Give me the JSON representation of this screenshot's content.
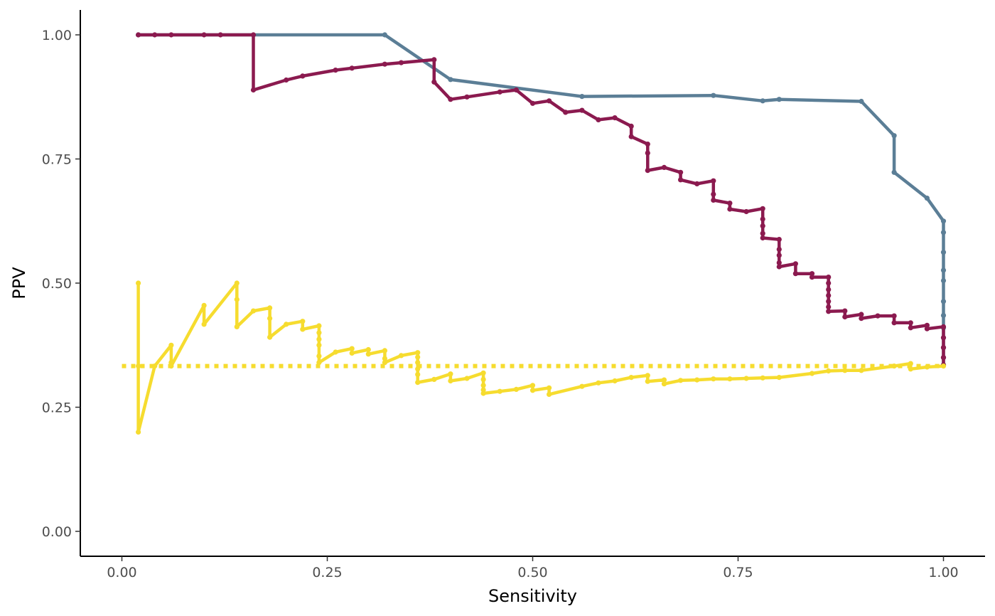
{
  "chart_data": {
    "type": "line",
    "title": "",
    "xlabel": "Sensitivity",
    "ylabel": "PPV",
    "xlim": [
      0,
      1
    ],
    "ylim": [
      0,
      1
    ],
    "x_ticks": [
      0,
      0.25,
      0.5,
      0.75,
      1
    ],
    "y_ticks": [
      0,
      0.25,
      0.5,
      0.75,
      1
    ],
    "x_tick_labels": [
      "0.00",
      "0.25",
      "0.50",
      "0.75",
      "1.00"
    ],
    "y_tick_labels": [
      "0.00",
      "0.25",
      "0.50",
      "0.75",
      "1.00"
    ],
    "grid": false,
    "legend": "none",
    "baseline": {
      "y": 0.333,
      "x_range": [
        0,
        1
      ],
      "style": "dotted",
      "color": "#f6dc2f"
    },
    "series": [
      {
        "color": "#5b7e96",
        "points": [
          [
            0.02,
            1.0
          ],
          [
            0.32,
            1.0
          ],
          [
            0.4,
            0.91
          ],
          [
            0.56,
            0.876
          ],
          [
            0.72,
            0.878
          ],
          [
            0.78,
            0.867
          ],
          [
            0.8,
            0.87
          ],
          [
            0.9,
            0.866
          ],
          [
            0.94,
            0.797
          ],
          [
            0.94,
            0.723
          ],
          [
            0.98,
            0.671
          ],
          [
            1.0,
            0.625
          ],
          [
            1.0,
            0.602
          ],
          [
            1.0,
            0.562
          ],
          [
            1.0,
            0.526
          ],
          [
            1.0,
            0.505
          ],
          [
            1.0,
            0.463
          ],
          [
            1.0,
            0.435
          ],
          [
            1.0,
            0.41
          ],
          [
            1.0,
            0.39
          ],
          [
            1.0,
            0.37
          ],
          [
            1.0,
            0.35
          ],
          [
            1.0,
            0.335
          ]
        ]
      },
      {
        "color": "#8b1a4f",
        "points": [
          [
            0.02,
            1.0
          ],
          [
            0.04,
            1.0
          ],
          [
            0.06,
            1.0
          ],
          [
            0.1,
            1.0
          ],
          [
            0.12,
            1.0
          ],
          [
            0.16,
            1.0
          ],
          [
            0.16,
            0.889
          ],
          [
            0.2,
            0.909
          ],
          [
            0.22,
            0.917
          ],
          [
            0.26,
            0.929
          ],
          [
            0.28,
            0.933
          ],
          [
            0.32,
            0.941
          ],
          [
            0.34,
            0.944
          ],
          [
            0.38,
            0.95
          ],
          [
            0.38,
            0.905
          ],
          [
            0.4,
            0.87
          ],
          [
            0.42,
            0.875
          ],
          [
            0.46,
            0.885
          ],
          [
            0.48,
            0.889
          ],
          [
            0.5,
            0.862
          ],
          [
            0.52,
            0.867
          ],
          [
            0.54,
            0.844
          ],
          [
            0.56,
            0.848
          ],
          [
            0.58,
            0.829
          ],
          [
            0.6,
            0.833
          ],
          [
            0.62,
            0.816
          ],
          [
            0.62,
            0.795
          ],
          [
            0.64,
            0.78
          ],
          [
            0.64,
            0.762
          ],
          [
            0.64,
            0.727
          ],
          [
            0.66,
            0.733
          ],
          [
            0.68,
            0.723
          ],
          [
            0.68,
            0.708
          ],
          [
            0.7,
            0.7
          ],
          [
            0.72,
            0.706
          ],
          [
            0.72,
            0.679
          ],
          [
            0.72,
            0.667
          ],
          [
            0.74,
            0.661
          ],
          [
            0.74,
            0.649
          ],
          [
            0.76,
            0.644
          ],
          [
            0.78,
            0.65
          ],
          [
            0.78,
            0.629
          ],
          [
            0.78,
            0.615
          ],
          [
            0.78,
            0.6
          ],
          [
            0.78,
            0.591
          ],
          [
            0.8,
            0.588
          ],
          [
            0.8,
            0.568
          ],
          [
            0.8,
            0.556
          ],
          [
            0.8,
            0.541
          ],
          [
            0.8,
            0.533
          ],
          [
            0.82,
            0.539
          ],
          [
            0.82,
            0.519
          ],
          [
            0.84,
            0.519
          ],
          [
            0.84,
            0.512
          ],
          [
            0.86,
            0.512
          ],
          [
            0.86,
            0.5
          ],
          [
            0.86,
            0.487
          ],
          [
            0.86,
            0.475
          ],
          [
            0.86,
            0.463
          ],
          [
            0.86,
            0.452
          ],
          [
            0.86,
            0.443
          ],
          [
            0.88,
            0.444
          ],
          [
            0.88,
            0.432
          ],
          [
            0.9,
            0.437
          ],
          [
            0.9,
            0.429
          ],
          [
            0.92,
            0.434
          ],
          [
            0.94,
            0.434
          ],
          [
            0.94,
            0.42
          ],
          [
            0.96,
            0.42
          ],
          [
            0.96,
            0.41
          ],
          [
            0.98,
            0.415
          ],
          [
            0.98,
            0.408
          ],
          [
            1.0,
            0.412
          ],
          [
            1.0,
            0.39
          ],
          [
            1.0,
            0.37
          ],
          [
            1.0,
            0.35
          ],
          [
            1.0,
            0.335
          ]
        ]
      },
      {
        "color": "#f6dc2f",
        "points": [
          [
            0.02,
            0.5
          ],
          [
            0.02,
            0.333
          ],
          [
            0.02,
            0.2
          ],
          [
            0.04,
            0.333
          ],
          [
            0.06,
            0.375
          ],
          [
            0.06,
            0.34
          ],
          [
            0.06,
            0.333
          ],
          [
            0.1,
            0.455
          ],
          [
            0.1,
            0.417
          ],
          [
            0.14,
            0.5
          ],
          [
            0.14,
            0.467
          ],
          [
            0.14,
            0.412
          ],
          [
            0.16,
            0.444
          ],
          [
            0.18,
            0.45
          ],
          [
            0.18,
            0.429
          ],
          [
            0.18,
            0.391
          ],
          [
            0.2,
            0.417
          ],
          [
            0.22,
            0.423
          ],
          [
            0.22,
            0.407
          ],
          [
            0.24,
            0.414
          ],
          [
            0.24,
            0.4
          ],
          [
            0.24,
            0.387
          ],
          [
            0.24,
            0.375
          ],
          [
            0.24,
            0.353
          ],
          [
            0.24,
            0.34
          ],
          [
            0.26,
            0.361
          ],
          [
            0.28,
            0.368
          ],
          [
            0.28,
            0.359
          ],
          [
            0.3,
            0.366
          ],
          [
            0.3,
            0.357
          ],
          [
            0.32,
            0.364
          ],
          [
            0.32,
            0.348
          ],
          [
            0.32,
            0.34
          ],
          [
            0.34,
            0.354
          ],
          [
            0.36,
            0.36
          ],
          [
            0.36,
            0.351
          ],
          [
            0.36,
            0.34
          ],
          [
            0.36,
            0.327
          ],
          [
            0.36,
            0.316
          ],
          [
            0.36,
            0.3
          ],
          [
            0.38,
            0.306
          ],
          [
            0.4,
            0.317
          ],
          [
            0.4,
            0.303
          ],
          [
            0.42,
            0.308
          ],
          [
            0.44,
            0.319
          ],
          [
            0.44,
            0.306
          ],
          [
            0.44,
            0.294
          ],
          [
            0.44,
            0.285
          ],
          [
            0.44,
            0.278
          ],
          [
            0.46,
            0.282
          ],
          [
            0.48,
            0.286
          ],
          [
            0.5,
            0.294
          ],
          [
            0.5,
            0.284
          ],
          [
            0.52,
            0.289
          ],
          [
            0.52,
            0.276
          ],
          [
            0.56,
            0.292
          ],
          [
            0.58,
            0.299
          ],
          [
            0.6,
            0.303
          ],
          [
            0.62,
            0.31
          ],
          [
            0.64,
            0.314
          ],
          [
            0.64,
            0.302
          ],
          [
            0.66,
            0.305
          ],
          [
            0.66,
            0.297
          ],
          [
            0.68,
            0.304
          ],
          [
            0.7,
            0.305
          ],
          [
            0.72,
            0.307
          ],
          [
            0.74,
            0.307
          ],
          [
            0.76,
            0.308
          ],
          [
            0.78,
            0.309
          ],
          [
            0.8,
            0.31
          ],
          [
            0.84,
            0.318
          ],
          [
            0.86,
            0.323
          ],
          [
            0.88,
            0.324
          ],
          [
            0.9,
            0.324
          ],
          [
            0.94,
            0.333
          ],
          [
            0.96,
            0.338
          ],
          [
            0.96,
            0.327
          ],
          [
            0.98,
            0.331
          ],
          [
            1.0,
            0.333
          ]
        ]
      }
    ]
  }
}
